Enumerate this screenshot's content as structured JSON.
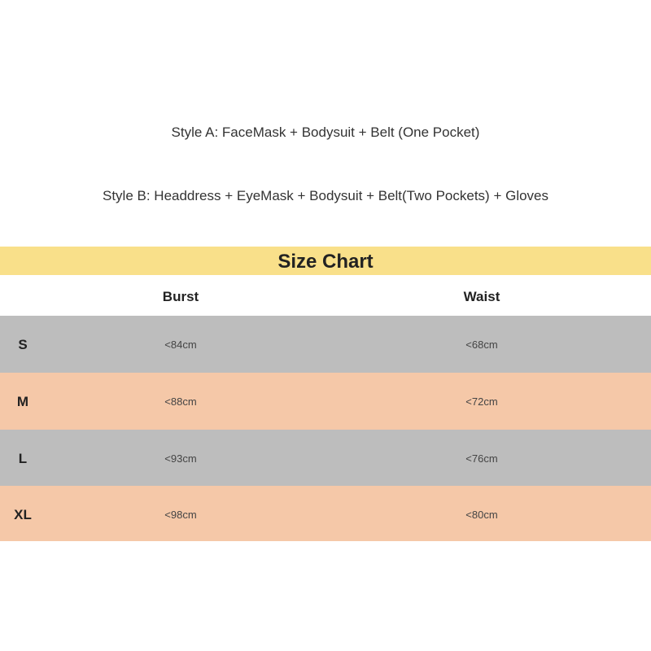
{
  "styles": {
    "style_a": "Style A: FaceMask + Bodysuit + Belt (One Pocket)",
    "style_b": "Style B: Headdress + EyeMask + Bodysuit + Belt(Two Pockets) + Gloves"
  },
  "size_chart": {
    "title": "Size Chart",
    "columns": [
      "Burst",
      "Waist"
    ],
    "rows": [
      {
        "size": "S",
        "burst": "<84cm",
        "waist": "<68cm"
      },
      {
        "size": "M",
        "burst": "<88cm",
        "waist": "<72cm"
      },
      {
        "size": "L",
        "burst": "<93cm",
        "waist": "<76cm"
      },
      {
        "size": "XL",
        "burst": "<98cm",
        "waist": "<80cm"
      }
    ]
  },
  "colors": {
    "title_band": "#f9e08a",
    "row_gray": "#bdbdbd",
    "row_peach": "#f5c8a8"
  }
}
